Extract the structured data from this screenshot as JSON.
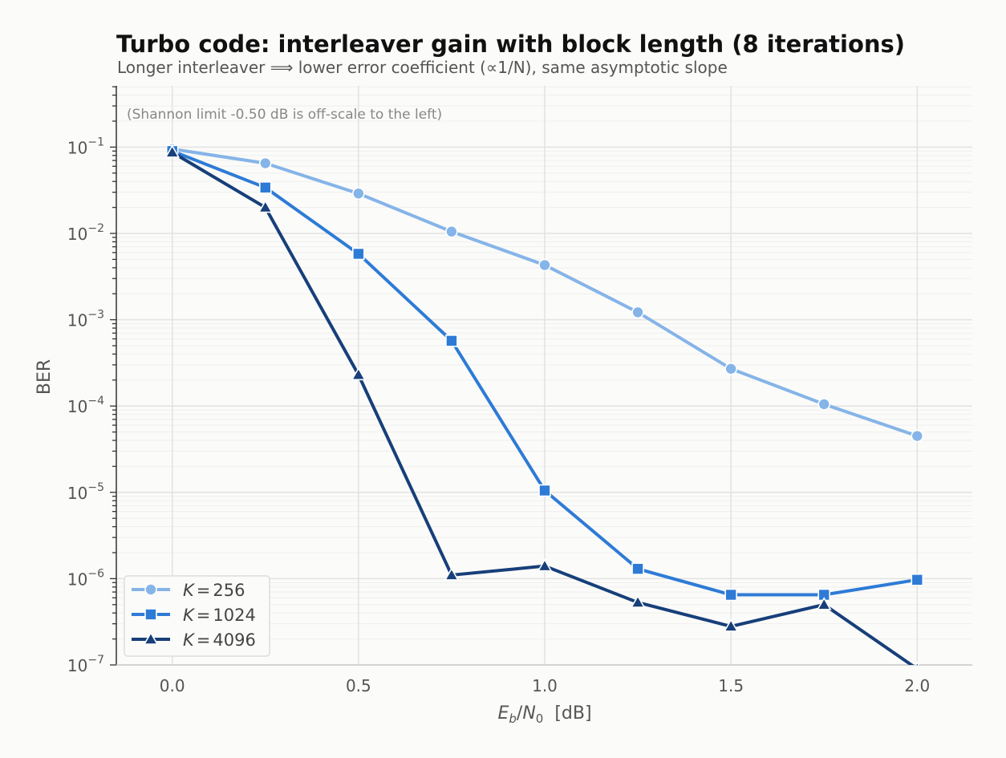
{
  "chart_data": {
    "type": "line",
    "title": "Turbo code: interleaver gain with block length (8 iterations)",
    "subtitle": "Longer interleaver ⟹ lower error coefficient (∝1/N), same asymptotic slope",
    "annotation": "(Shannon limit -0.50 dB is off-scale to the left)",
    "xlabel": "E_b/N_0  [dB]",
    "xlabel_parts": {
      "e": "E",
      "b": "b",
      "slash": "/",
      "n": "N",
      "zero": "0",
      "unit": "  [dB]"
    },
    "ylabel": "BER",
    "xlim": [
      -0.15,
      2.15
    ],
    "ylim": [
      1e-07,
      0.5
    ],
    "yscale": "log",
    "grid": true,
    "legend_position": "lower-left",
    "x_ticks": [
      "0.0",
      "0.5",
      "1.0",
      "1.5",
      "2.0"
    ],
    "y_ticks": [
      {
        "base": "10",
        "exp": "−1"
      },
      {
        "base": "10",
        "exp": "−2"
      },
      {
        "base": "10",
        "exp": "−3"
      },
      {
        "base": "10",
        "exp": "−4"
      },
      {
        "base": "10",
        "exp": "−5"
      },
      {
        "base": "10",
        "exp": "−6"
      },
      {
        "base": "10",
        "exp": "−7"
      }
    ],
    "x": [
      0.0,
      0.25,
      0.5,
      0.75,
      1.0,
      1.25,
      1.5,
      1.75,
      2.0
    ],
    "series": [
      {
        "name": "K = 256",
        "var": "K",
        "eq": "=",
        "num": "256",
        "marker": "circle",
        "color": "#85b4e8",
        "values": [
          0.095,
          0.065,
          0.029,
          0.0105,
          0.0043,
          0.00122,
          0.00027,
          0.000105,
          4.5e-05
        ]
      },
      {
        "name": "K = 1024",
        "var": "K",
        "eq": "=",
        "num": "1024",
        "marker": "square",
        "color": "#2e7bd6",
        "values": [
          0.09,
          0.034,
          0.0058,
          0.00057,
          1.05e-05,
          1.3e-06,
          6.5e-07,
          6.5e-07,
          9.7e-07
        ]
      },
      {
        "name": "K = 4096",
        "var": "K",
        "eq": "=",
        "num": "4096",
        "marker": "triangle",
        "color": "#173f7a",
        "values": [
          0.087,
          0.02,
          0.00023,
          1.1e-06,
          1.4e-06,
          5.3e-07,
          2.8e-07,
          5e-07,
          9e-08
        ]
      }
    ]
  }
}
